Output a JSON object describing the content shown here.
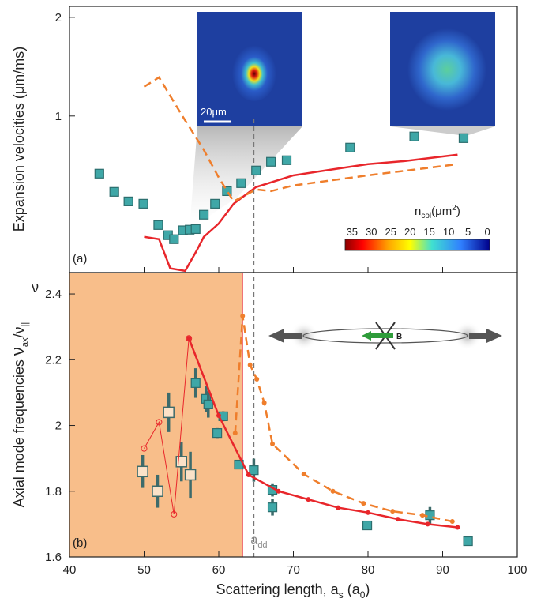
{
  "chart_data": [
    {
      "type": "line",
      "log_y": true,
      "ylabel": [
        "Expansion velocities (μm/ms)"
      ],
      "panel_label": "(a)",
      "ylim": [
        0.333,
        2.16
      ],
      "yticks": [
        1,
        2
      ],
      "series": [
        {
          "style": "markers",
          "color": "#3fa7a7",
          "x": [
            44.0,
            46.0,
            47.9,
            49.9,
            51.9,
            53.2,
            54.0,
            55.2,
            56.1,
            56.9,
            58.0,
            59.5,
            61.1,
            63.0,
            65.0,
            67.0,
            69.1,
            77.6,
            86.2,
            92.8
          ],
          "values": [
            0.667,
            0.587,
            0.549,
            0.54,
            0.465,
            0.433,
            0.421,
            0.448,
            0.45,
            0.452,
            0.5,
            0.54,
            0.59,
            0.624,
            0.682,
            0.725,
            0.733,
            0.801,
            0.866,
            0.856
          ]
        },
        {
          "style": "solid",
          "color": "#e8262b",
          "x": [
            50,
            52,
            53.5,
            55.5,
            57,
            58,
            60,
            62,
            65,
            70,
            75,
            80,
            85,
            92
          ],
          "values": [
            0.428,
            0.421,
            0.343,
            0.337,
            0.387,
            0.428,
            0.47,
            0.54,
            0.607,
            0.659,
            0.686,
            0.713,
            0.729,
            0.762
          ]
        },
        {
          "style": "dashed",
          "color": "#ef7e2c",
          "x": [
            50,
            52,
            55,
            58,
            60,
            62,
            65,
            67,
            70,
            80,
            92
          ],
          "values": [
            1.228,
            1.312,
            1.011,
            0.788,
            0.649,
            0.549,
            0.597,
            0.59,
            0.614,
            0.659,
            0.713
          ]
        }
      ],
      "colorbar": {
        "label": [
          "n",
          "col",
          "(μm",
          "2",
          ")"
        ],
        "clim": [
          36.8,
          -0.6
        ],
        "ticks": [
          35,
          30,
          25,
          20,
          15,
          10,
          5,
          0
        ]
      },
      "scale_bar": "20μm"
    },
    {
      "type": "line",
      "xlabel": [
        "Scattering length, a",
        "s",
        " (a",
        "0",
        ")"
      ],
      "ylabel": [
        "Axial mode frequencies ",
        "ν",
        "ax",
        "/ν",
        "||"
      ],
      "corner_symbol": "ν",
      "panel_label": "(b)",
      "xlim": [
        40,
        100
      ],
      "xticks": [
        40,
        50,
        60,
        70,
        80,
        90,
        100
      ],
      "ylim": [
        1.6,
        2.465
      ],
      "yticks": [
        1.6,
        1.8,
        2.0,
        2.2,
        2.4
      ],
      "shade_xlim": [
        40,
        63.2
      ],
      "shade_color": "#f8be8a",
      "vline": {
        "x": 64.7,
        "label": [
          "a",
          "dd"
        ]
      },
      "field_label": "B",
      "series": [
        {
          "style": "markers",
          "color": "#3fa7a7",
          "x": [
            56.9,
            58.3,
            58.6,
            59.8,
            60.6,
            62.7,
            64.7,
            67.2,
            67.2,
            79.9,
            88.3,
            93.4
          ],
          "values": [
            2.129,
            2.081,
            2.064,
            1.977,
            2.028,
            1.881,
            1.864,
            1.804,
            1.751,
            1.696,
            1.727,
            1.648
          ],
          "errors": [
            0.045,
            0.04,
            0.04,
            0.015,
            0.015,
            0.012,
            0.035,
            0.02,
            0.025,
            0.012,
            0.025,
            0.012
          ]
        },
        {
          "style": "open-markers",
          "color": "#3d6b6b",
          "x": [
            49.8,
            51.8,
            53.3,
            55.0,
            56.2
          ],
          "values": [
            1.86,
            1.8,
            2.04,
            1.89,
            1.85
          ],
          "errors": [
            0.05,
            0.05,
            0.06,
            0.06,
            0.07
          ]
        },
        {
          "style": "thin-circles",
          "color": "#e8262b",
          "x": [
            50,
            52,
            54,
            56
          ],
          "values": [
            1.93,
            2.01,
            1.73,
            2.265
          ]
        },
        {
          "style": "solid-dots",
          "color": "#e8262b",
          "x": [
            56,
            60,
            64,
            68,
            72,
            76,
            80,
            84,
            88,
            92
          ],
          "values": [
            2.265,
            2.03,
            1.85,
            1.8,
            1.775,
            1.75,
            1.735,
            1.715,
            1.7,
            1.69
          ]
        },
        {
          "style": "dashed-dots",
          "color": "#ef7e2c",
          "x": [
            62.2,
            63.2,
            64.2,
            65.1,
            66.1,
            67.2,
            71.4,
            75.3,
            79.4,
            83.3,
            87.3,
            91.3
          ],
          "values": [
            1.977,
            2.333,
            2.184,
            2.141,
            2.069,
            1.944,
            1.852,
            1.8,
            1.763,
            1.739,
            1.727,
            1.708
          ]
        }
      ]
    }
  ]
}
